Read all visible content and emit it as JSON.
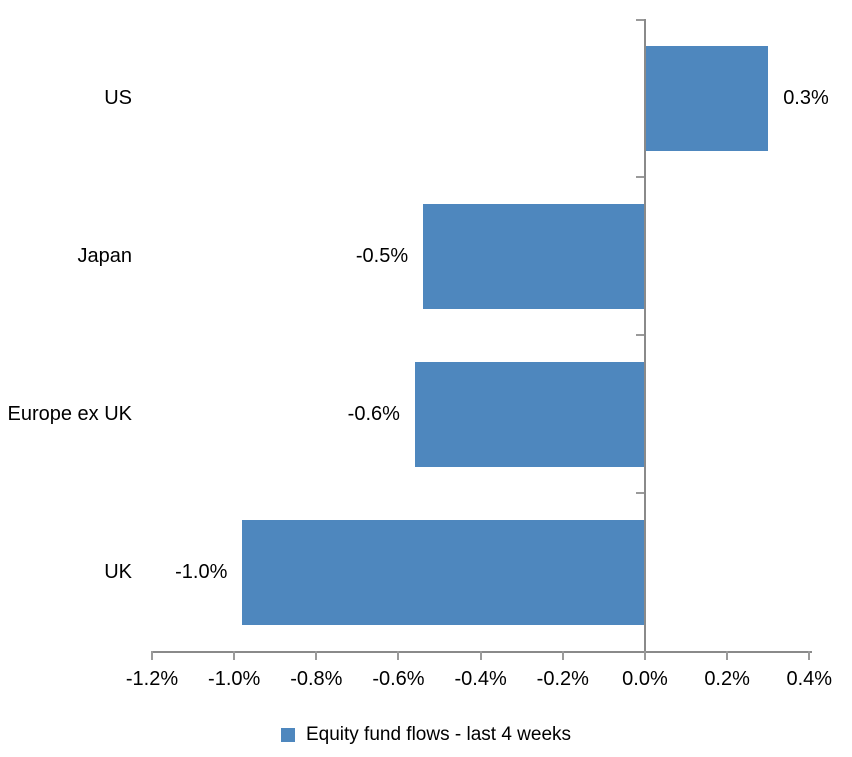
{
  "colors": {
    "bar": "#4E87BE",
    "axis_line": "#8A8A8A",
    "axis_tick": "#9A9A9A",
    "text": "#000000",
    "background": "#FFFFFF"
  },
  "chart_data": {
    "type": "bar",
    "orientation": "horizontal",
    "title": "",
    "categories": [
      "US",
      "Japan",
      "Europe ex UK",
      "UK"
    ],
    "values": [
      0.3,
      -0.5,
      -0.6,
      -1.0
    ],
    "values_precise_pct": [
      0.3,
      -0.54,
      -0.56,
      -0.98
    ],
    "data_labels": [
      "0.3%",
      "-0.5%",
      "-0.6%",
      "-1.0%"
    ],
    "unit": "%",
    "x_axis": {
      "min": -1.2,
      "max": 0.4,
      "tick_step": 0.2,
      "tick_labels": [
        "-1.2%",
        "-1.0%",
        "-0.8%",
        "-0.6%",
        "-0.4%",
        "-0.2%",
        "0.0%",
        "0.2%",
        "0.4%"
      ]
    },
    "grid": false,
    "legend": {
      "position": "bottom",
      "entries": [
        {
          "label": "Equity fund flows - last 4 weeks",
          "swatch": "blue-square"
        }
      ]
    }
  }
}
